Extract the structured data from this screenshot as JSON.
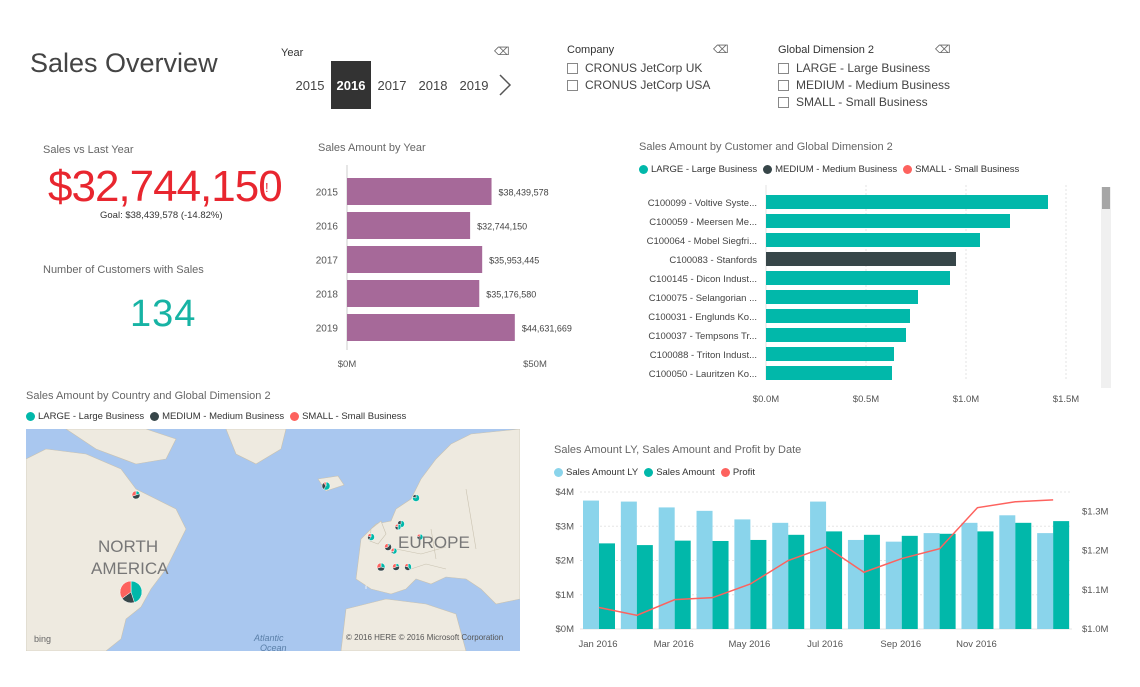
{
  "page_title": "Sales Overview",
  "year_slicer": {
    "title": "Year",
    "years": [
      "2015",
      "2016",
      "2017",
      "2018",
      "2019"
    ],
    "selected": "2016"
  },
  "company_slicer": {
    "title": "Company",
    "items": [
      "CRONUS JetCorp UK",
      "CRONUS JetCorp USA"
    ]
  },
  "dimension_slicer": {
    "title": "Global Dimension 2",
    "items": [
      "LARGE - Large Business",
      "MEDIUM - Medium Business",
      "SMALL - Small Business"
    ]
  },
  "kpi": {
    "title": "Sales vs Last Year",
    "value": "$32,744,150",
    "indicator": "!",
    "goal": "Goal: $38,439,578 (-14.82%)"
  },
  "customers_card": {
    "title": "Number of Customers with Sales",
    "value": "134"
  },
  "colors": {
    "large": "#01b8aa",
    "medium": "#374649",
    "small": "#fd625e",
    "purple": "#a66999",
    "ly": "#8ad4eb",
    "kpi_red": "#e8262f",
    "map_land": "#eeeae0",
    "map_water": "#a9c7ef"
  },
  "map_card": {
    "title": "Sales Amount by Country and Global Dimension 2",
    "legend": [
      "LARGE - Large Business",
      "MEDIUM - Medium Business",
      "SMALL - Small Business"
    ],
    "labels": [
      "NORTH",
      "AMERICA",
      "EUROPE",
      "Atlantic",
      "Ocean"
    ],
    "bing": "bing",
    "copyright": "© 2016 HERE   © 2016 Microsoft Corporation"
  },
  "chart_data": [
    {
      "type": "bar",
      "title": "Sales Amount by Year",
      "orientation": "horizontal",
      "categories": [
        "2015",
        "2016",
        "2017",
        "2018",
        "2019"
      ],
      "values": [
        38439578,
        32744150,
        35953445,
        35176580,
        44631669
      ],
      "data_labels": [
        "$38,439,578",
        "$32,744,150",
        "$35,953,445",
        "$35,176,580",
        "$44,631,669"
      ],
      "xlim": [
        0,
        50000000
      ],
      "x_ticks": [
        "$0M",
        "$50M"
      ]
    },
    {
      "type": "bar",
      "title": "Sales Amount by Customer and Global Dimension 2",
      "orientation": "horizontal",
      "legend": [
        "LARGE - Large Business",
        "MEDIUM - Medium Business",
        "SMALL - Small Business"
      ],
      "categories": [
        "C100099 - Voltive Syste...",
        "C100059 - Meersen Me...",
        "C100064 - Mobel Siegfri...",
        "C100083 - Stanfords",
        "C100145 - Dicon Indust...",
        "C100075 - Selangorian ...",
        "C100031 - Englunds Ko...",
        "C100037 - Tempsons Tr...",
        "C100088 - Triton Indust...",
        "C100050 - Lauritzen Ko..."
      ],
      "values": [
        1410000,
        1220000,
        1070000,
        950000,
        920000,
        760000,
        720000,
        700000,
        640000,
        630000
      ],
      "segment": [
        "LARGE",
        "LARGE",
        "LARGE",
        "MEDIUM",
        "LARGE",
        "LARGE",
        "LARGE",
        "LARGE",
        "LARGE",
        "LARGE"
      ],
      "xlim": [
        0,
        1500000
      ],
      "x_ticks": [
        "$0.0M",
        "$0.5M",
        "$1.0M",
        "$1.5M"
      ]
    },
    {
      "type": "bar",
      "title": "Sales Amount LY, Sales Amount and Profit by Date",
      "series": [
        {
          "name": "Sales Amount LY",
          "values": [
            3.75,
            3.72,
            3.55,
            3.45,
            3.2,
            3.1,
            3.72,
            2.6,
            2.55,
            2.8,
            3.1,
            3.32,
            2.8
          ]
        },
        {
          "name": "Sales Amount",
          "values": [
            2.5,
            2.45,
            2.58,
            2.57,
            2.6,
            2.75,
            2.85,
            2.75,
            2.72,
            2.78,
            2.85,
            3.1,
            3.15
          ]
        },
        {
          "name": "Profit",
          "values": [
            1.055,
            1.035,
            1.075,
            1.08,
            1.115,
            1.175,
            1.21,
            1.145,
            1.18,
            1.205,
            1.31,
            1.325,
            1.33
          ]
        }
      ],
      "x_ticks": [
        "Jan 2016",
        "Mar 2016",
        "May 2016",
        "Jul 2016",
        "Sep 2016",
        "Nov 2016"
      ],
      "y_ticks": [
        "$0M",
        "$1M",
        "$2M",
        "$3M",
        "$4M"
      ],
      "y2_ticks": [
        "$1.0M",
        "$1.1M",
        "$1.2M",
        "$1.3M"
      ],
      "ylim": [
        0,
        4
      ],
      "y2lim": [
        1.0,
        1.35
      ]
    }
  ]
}
